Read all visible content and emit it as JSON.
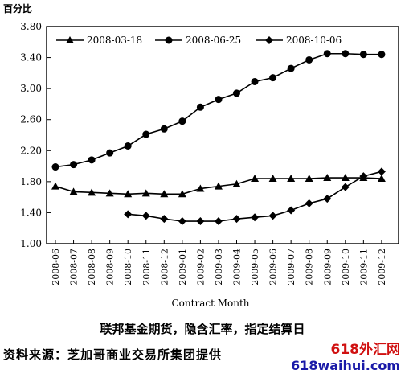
{
  "header": {
    "unit_label": "百分比"
  },
  "chart_data": {
    "type": "line",
    "categories": [
      "2008-06",
      "2008-07",
      "2008-08",
      "2008-09",
      "2008-10",
      "2008-11",
      "2008-12",
      "2009-01",
      "2009-02",
      "2009-03",
      "2009-04",
      "2009-05",
      "2009-06",
      "2009-07",
      "2009-08",
      "2009-09",
      "2009-10",
      "2009-11",
      "2009-12"
    ],
    "series": [
      {
        "name": "2008-03-18",
        "marker": "triangle",
        "values": [
          1.74,
          1.67,
          1.66,
          1.65,
          1.64,
          1.65,
          1.64,
          1.64,
          1.71,
          1.74,
          1.77,
          1.84,
          1.84,
          1.84,
          1.84,
          1.85,
          1.85,
          1.85,
          1.84
        ]
      },
      {
        "name": "2008-06-25",
        "marker": "circle",
        "values": [
          1.99,
          2.02,
          2.08,
          2.17,
          2.26,
          2.41,
          2.48,
          2.58,
          2.76,
          2.86,
          2.94,
          3.09,
          3.14,
          3.26,
          3.37,
          3.45,
          3.45,
          3.44,
          3.44
        ]
      },
      {
        "name": "2008-10-06",
        "marker": "diamond",
        "values": [
          null,
          null,
          null,
          null,
          1.38,
          1.36,
          1.32,
          1.29,
          1.29,
          1.29,
          1.32,
          1.34,
          1.36,
          1.43,
          1.52,
          1.58,
          1.73,
          1.87,
          1.93
        ]
      }
    ],
    "yticks": [
      "3.80",
      "3.40",
      "3.00",
      "2.60",
      "2.20",
      "1.80",
      "1.40",
      "1.00"
    ],
    "ylim": [
      1.0,
      3.8
    ],
    "xlabel": "Contract Month",
    "legend_position": "top",
    "colors": {
      "line": "#000000"
    }
  },
  "caption": "联邦基金期货，隐含汇率，指定结算日",
  "source": "资料来源：芝加哥商业交易所集团提供",
  "watermark": {
    "cn": "618外汇网",
    "en": "618waihui.com"
  }
}
